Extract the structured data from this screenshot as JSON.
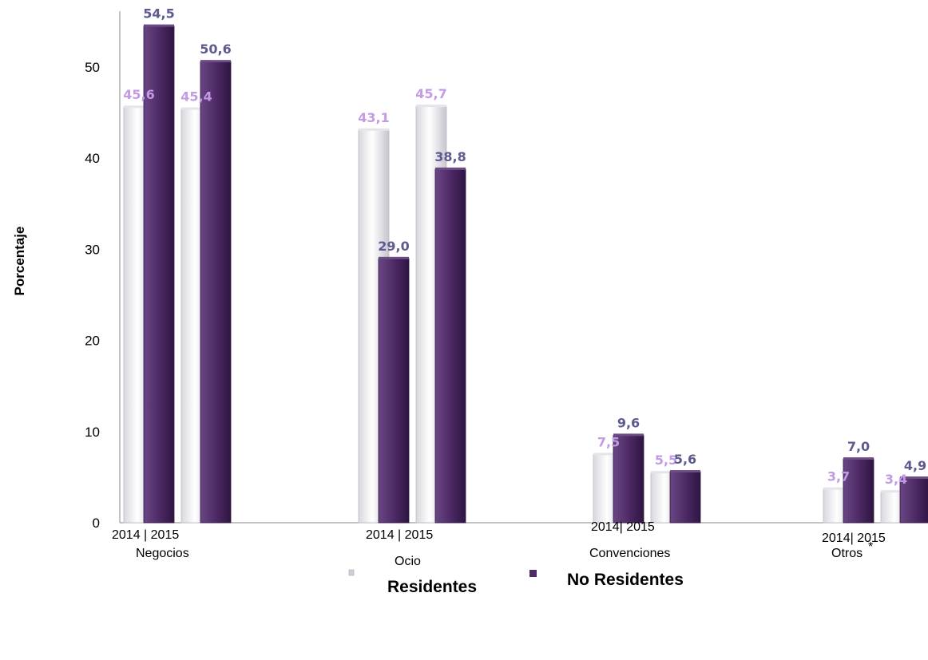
{
  "chart_data": {
    "type": "bar",
    "ylabel": "Porcentaje",
    "xlabel": "",
    "ylim": [
      0,
      56
    ],
    "yticks": [
      "0",
      "10",
      "20",
      "30",
      "40",
      "50"
    ],
    "grid": false,
    "legend_position": "bottom",
    "groups": [
      {
        "category": "Negocios",
        "years_label": "2014 |  2015",
        "footnote": ""
      },
      {
        "category": "Ocio",
        "years_label": "2014 |  2015",
        "footnote": ""
      },
      {
        "category": "Convenciones",
        "years_label": "2014|  2015",
        "footnote": ""
      },
      {
        "category": "Otros",
        "years_label": "2014|  2015",
        "footnote": "*"
      }
    ],
    "years": [
      "2014",
      "2015"
    ],
    "series": [
      {
        "name": "Residentes",
        "values_2014": [
          45.6,
          43.1,
          7.5,
          3.7
        ],
        "values_2015": [
          45.4,
          45.7,
          5.5,
          3.4
        ],
        "labels_2014": [
          "45,6",
          "43,1",
          "7,5",
          "3,7"
        ],
        "labels_2015": [
          "45,4",
          "45,7",
          "5,5",
          "3,4"
        ],
        "color": "#f1f0f4",
        "label_color": "#c39ae6"
      },
      {
        "name": "No Residentes",
        "values_2014": [
          54.5,
          29.0,
          9.6,
          7.0
        ],
        "values_2015": [
          50.6,
          38.8,
          5.6,
          4.9
        ],
        "labels_2014": [
          "54,5",
          "29,0",
          "9,6",
          "7,0"
        ],
        "labels_2015": [
          "50,6",
          "38,8",
          "5,6",
          "4,9"
        ],
        "color": "#4e2a66",
        "label_color": "#5d5a8f"
      }
    ]
  }
}
